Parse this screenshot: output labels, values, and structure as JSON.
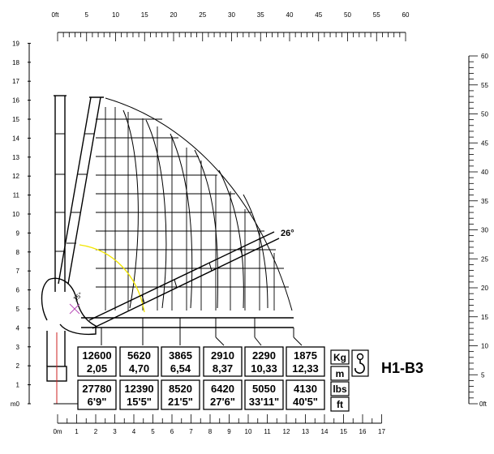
{
  "top_axis": {
    "unit_label": "0ft",
    "labels": [
      "5",
      "10",
      "15",
      "20",
      "25",
      "30",
      "35",
      "40",
      "45",
      "50",
      "55",
      "60"
    ]
  },
  "bottom_axis": {
    "unit_label": "0m",
    "labels": [
      "1",
      "2",
      "3",
      "4",
      "5",
      "6",
      "7",
      "8",
      "9",
      "10",
      "11",
      "12",
      "13",
      "14",
      "15",
      "16",
      "17"
    ]
  },
  "left_axis": {
    "unit_label": "m0",
    "labels": [
      "1",
      "2",
      "3",
      "4",
      "5",
      "6",
      "7",
      "8",
      "9",
      "10",
      "11",
      "12",
      "13",
      "14",
      "15",
      "16",
      "17",
      "18",
      "19"
    ]
  },
  "right_axis": {
    "unit_label": "0ft",
    "labels": [
      "5",
      "10",
      "15",
      "20",
      "25",
      "30",
      "35",
      "40",
      "45",
      "50",
      "55",
      "60"
    ]
  },
  "max_angle_label": "26°",
  "small_angle_label": "15°",
  "load_table": [
    {
      "kg": "12600",
      "m": "2,05",
      "lbs": "27780",
      "ft": "6'9\""
    },
    {
      "kg": "5620",
      "m": "4,70",
      "lbs": "12390",
      "ft": "15'5\""
    },
    {
      "kg": "3865",
      "m": "6,54",
      "lbs": "8520",
      "ft": "21'5\""
    },
    {
      "kg": "2910",
      "m": "8,37",
      "lbs": "6420",
      "ft": "27'6\""
    },
    {
      "kg": "2290",
      "m": "10,33",
      "lbs": "5050",
      "ft": "33'11\""
    },
    {
      "kg": "1875",
      "m": "12,33",
      "lbs": "4130",
      "ft": "40'5\""
    }
  ],
  "units": {
    "kg": "Kg",
    "m": "m",
    "lbs": "lbs",
    "ft": "ft"
  },
  "model": "H1-B3",
  "icons": {
    "hook": "crane-hook-icon"
  }
}
